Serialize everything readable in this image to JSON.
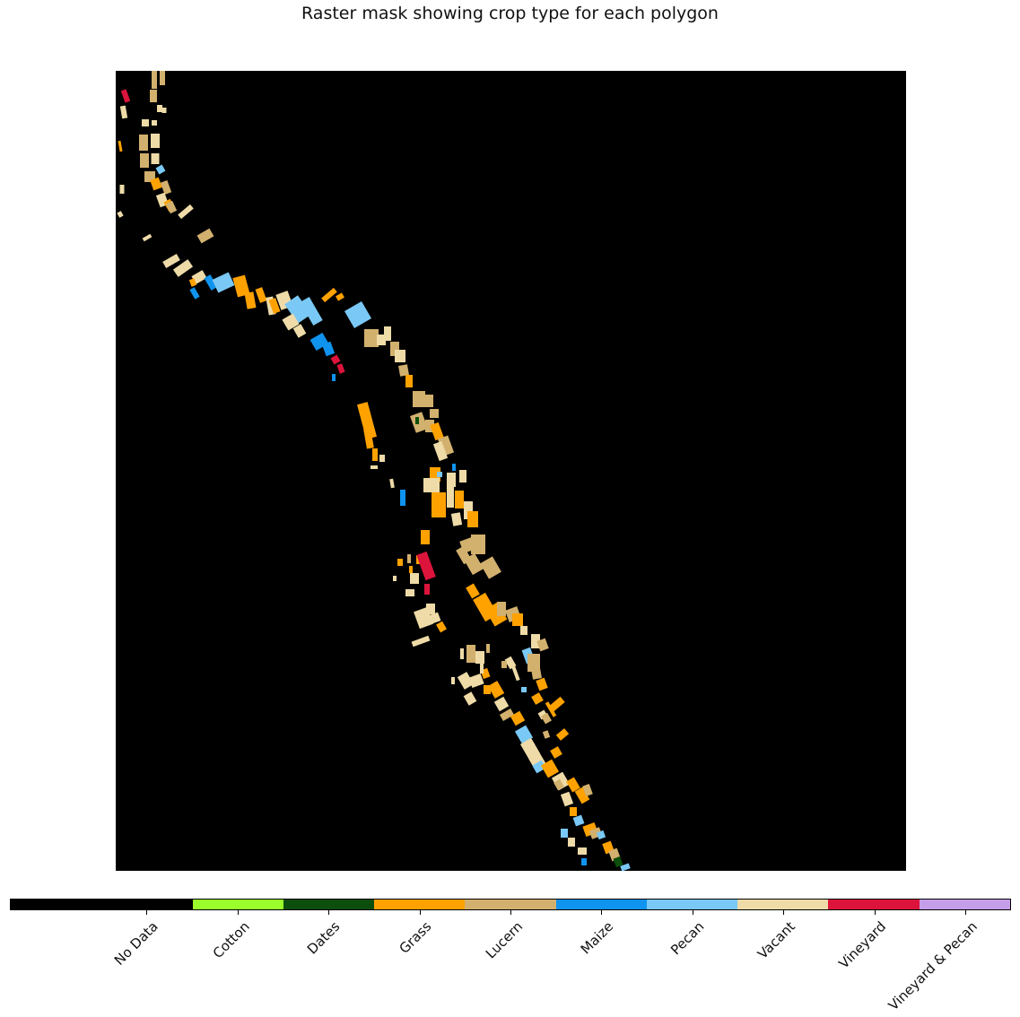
{
  "title": "Raster mask showing crop type for each polygon",
  "legend": {
    "classes": [
      {
        "label": "No Data",
        "color": "#000000",
        "span": 2
      },
      {
        "label": "Cotton",
        "color": "#9aff2a",
        "span": 1
      },
      {
        "label": "Dates",
        "color": "#0c4f0c",
        "span": 1
      },
      {
        "label": "Grass",
        "color": "#ffa200",
        "span": 1
      },
      {
        "label": "Lucern",
        "color": "#d2b06e",
        "span": 1
      },
      {
        "label": "Maize",
        "color": "#0f93ee",
        "span": 1
      },
      {
        "label": "Pecan",
        "color": "#7ac8f5",
        "span": 1
      },
      {
        "label": "Vacant",
        "color": "#eedba8",
        "span": 1
      },
      {
        "label": "Vineyard",
        "color": "#dc143c",
        "span": 1
      },
      {
        "label": "Vineyard & Pecan",
        "color": "#c59de9",
        "span": 1
      }
    ]
  },
  "map": {
    "background_color": "#000000",
    "grid_on": false
  }
}
